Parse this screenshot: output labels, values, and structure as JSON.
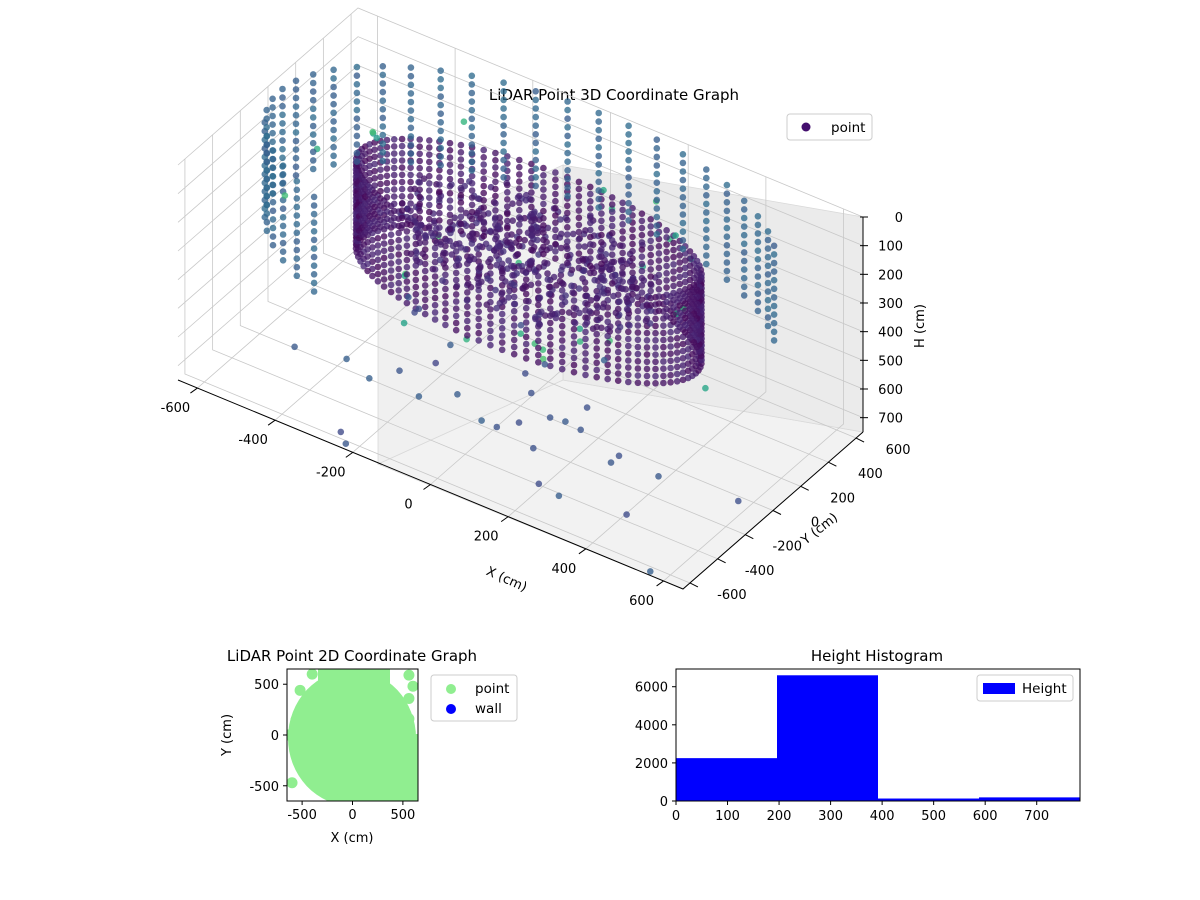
{
  "chart_data": [
    {
      "type": "scatter3d",
      "title": "LiDAR Point 3D Coordinate Graph",
      "xlabel": "X (cm)",
      "ylabel": "Y (cm)",
      "zlabel": "H (cm)",
      "x_ticks": [
        -600,
        -400,
        -200,
        0,
        200,
        400,
        600
      ],
      "y_ticks": [
        -600,
        -400,
        -200,
        0,
        200,
        400,
        600
      ],
      "h_ticks": [
        0,
        100,
        200,
        300,
        400,
        500,
        600,
        700
      ],
      "xlim": [
        -650,
        650
      ],
      "ylim": [
        -650,
        650
      ],
      "hlim": [
        0,
        750
      ],
      "h_axis_inverted": true,
      "grid": true,
      "legend": {
        "position": "top-right",
        "entries": [
          {
            "name": "point",
            "color": "#440f6e"
          }
        ]
      },
      "colormap": "viridis"
    },
    {
      "type": "scatter",
      "title": "LiDAR Point 2D Coordinate Graph",
      "xlabel": "X (cm)",
      "ylabel": "Y (cm)",
      "x_ticks": [
        -500,
        0,
        500
      ],
      "y_ticks": [
        -500,
        0,
        500
      ],
      "xlim": [
        -650,
        650
      ],
      "ylim": [
        -650,
        650
      ],
      "legend": {
        "position": "outside-right",
        "entries": [
          {
            "name": "point",
            "color": "#90ee90"
          },
          {
            "name": "wall",
            "color": "#0000ff"
          }
        ]
      },
      "series": [
        {
          "name": "point",
          "color": "#90ee90"
        },
        {
          "name": "wall",
          "color": "#0000ff"
        }
      ]
    },
    {
      "type": "bar",
      "title": "Height Histogram",
      "bins": [
        [
          0,
          196
        ],
        [
          196,
          392
        ],
        [
          392,
          588
        ],
        [
          588,
          784
        ]
      ],
      "values": [
        2250,
        6600,
        130,
        190
      ],
      "x_ticks": [
        0,
        100,
        200,
        300,
        400,
        500,
        600,
        700
      ],
      "y_ticks": [
        0,
        2000,
        4000,
        6000
      ],
      "xlim": [
        0,
        784
      ],
      "ylim": [
        0,
        6930
      ],
      "color": "#0000ff",
      "legend": {
        "position": "top-right",
        "entries": [
          {
            "name": "Height",
            "color": "#0000ff"
          }
        ]
      }
    }
  ]
}
